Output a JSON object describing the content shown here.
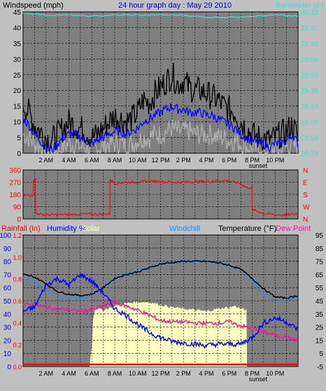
{
  "header": {
    "left": "Windspeed (mph)",
    "center": "24 hour graph day : May 29 2010",
    "right": "Barometer (in)"
  },
  "colors": {
    "background": "#c0c0c0",
    "plot": "#808080",
    "grid": "#000000",
    "wind_max": "#000000",
    "wind_avg": "#0000ff",
    "wind_low": "#b0b0b0",
    "barometer": "#40e0d0",
    "direction": "#ff0000",
    "temperature": "#000000",
    "humidity": "#0000ff",
    "windchill": "#1e90ff",
    "dew_point": "#ff1493",
    "solar": "#ffffc0",
    "rainfall": "#ff0000"
  },
  "chart_data": [
    {
      "type": "line",
      "ylabel": "Windspeed (mph)",
      "y2label": "Barometer (in)",
      "ylim": [
        0,
        45
      ],
      "y_ticks": [
        "0",
        "5",
        "10",
        "15",
        "20",
        "25",
        "30",
        "35",
        "40",
        "45"
      ],
      "y2lim": [
        28.79,
        30.12
      ],
      "y2_ticks": [
        "28.79",
        "28.94",
        "29.09",
        "29.23",
        "29.38",
        "29.53",
        "29.68",
        "29.83",
        "29.97",
        "30.12"
      ],
      "x_ticks": [
        "2 AM",
        "4 AM",
        "6 AM",
        "8 AM",
        "10 AM",
        "12 PM",
        "2 PM",
        "4 PM",
        "6 PM",
        "8 PM",
        "10 PM"
      ],
      "annotation": "sunset",
      "grid": true,
      "series": [
        {
          "key": "wind_max",
          "hours": [
            0,
            0.5,
            1,
            1.5,
            2,
            2.5,
            3,
            3.5,
            4,
            4.5,
            5,
            5.5,
            6,
            6.5,
            7,
            7.5,
            8,
            8.5,
            9,
            9.5,
            10,
            10.5,
            11,
            11.5,
            12,
            12.5,
            13,
            13.5,
            14,
            14.5,
            15,
            15.5,
            16,
            16.5,
            17,
            17.5,
            18,
            18.5,
            19,
            19.5,
            20,
            20.5,
            21,
            21.5,
            22,
            22.5,
            23,
            23.5,
            24
          ],
          "values": [
            16,
            13,
            9,
            7,
            5,
            4,
            6,
            8,
            10,
            9,
            8,
            7,
            5,
            6,
            8,
            10,
            12,
            11,
            10,
            11,
            13,
            17,
            16,
            19,
            21,
            23,
            25,
            22,
            23,
            21,
            20,
            20,
            19,
            18,
            17,
            15,
            14,
            13,
            10,
            8,
            6,
            5,
            5,
            4,
            5,
            6,
            7,
            9,
            5
          ]
        },
        {
          "key": "wind_avg",
          "hours": [
            0,
            0.5,
            1,
            1.5,
            2,
            2.5,
            3,
            3.5,
            4,
            4.5,
            5,
            5.5,
            6,
            6.5,
            7,
            7.5,
            8,
            8.5,
            9,
            9.5,
            10,
            10.5,
            11,
            11.5,
            12,
            12.5,
            13,
            13.5,
            14,
            14.5,
            15,
            15.5,
            16,
            16.5,
            17,
            17.5,
            18,
            18.5,
            19,
            19.5,
            20,
            20.5,
            21,
            21.5,
            22,
            22.5,
            23,
            23.5,
            24
          ],
          "values": [
            11,
            9,
            6,
            4,
            2,
            1,
            3,
            5,
            6,
            6,
            5,
            4,
            3,
            4,
            5,
            6,
            7,
            7,
            6,
            7,
            8,
            10,
            11,
            12,
            13,
            14,
            15,
            14,
            14,
            13,
            13,
            13,
            12,
            12,
            11,
            10,
            9,
            8,
            6,
            5,
            4,
            3,
            3,
            2,
            3,
            3,
            4,
            6,
            3
          ]
        },
        {
          "key": "wind_low",
          "hours": [
            0,
            0.5,
            1,
            1.5,
            2,
            2.5,
            3,
            3.5,
            4,
            4.5,
            5,
            5.5,
            6,
            6.5,
            7,
            7.5,
            8,
            8.5,
            9,
            9.5,
            10,
            10.5,
            11,
            11.5,
            12,
            12.5,
            13,
            13.5,
            14,
            14.5,
            15,
            15.5,
            16,
            16.5,
            17,
            17.5,
            18,
            18.5,
            19,
            19.5,
            20,
            20.5,
            21,
            21.5,
            22,
            22.5,
            23,
            23.5,
            24
          ],
          "values": [
            6,
            5,
            3,
            2,
            1,
            0,
            1,
            2,
            3,
            3,
            2,
            2,
            1,
            2,
            2,
            3,
            3,
            3,
            3,
            3,
            4,
            5,
            5,
            6,
            6,
            7,
            8,
            7,
            7,
            7,
            6,
            6,
            6,
            6,
            5,
            5,
            4,
            4,
            3,
            2,
            2,
            1,
            1,
            1,
            1,
            1,
            2,
            3,
            1
          ]
        },
        {
          "key": "barometer",
          "axis": "right",
          "hours": [
            0,
            2,
            4,
            6,
            8,
            10,
            12,
            14,
            16,
            18,
            20,
            22,
            24
          ],
          "values": [
            30.11,
            30.09,
            30.09,
            30.08,
            30.09,
            30.09,
            30.09,
            30.09,
            30.07,
            30.07,
            30.08,
            30.09,
            30.08
          ]
        }
      ]
    },
    {
      "type": "line",
      "ylabel": "Wind direction (degrees)",
      "ylim": [
        0,
        360
      ],
      "y_ticks": [
        "0",
        "90",
        "180",
        "270",
        "360"
      ],
      "y2_ticks": [
        "N",
        "W",
        "S",
        "E",
        "N"
      ],
      "grid": true,
      "series": [
        {
          "key": "direction",
          "hours": [
            0,
            0.5,
            0.9,
            1,
            1.1,
            2,
            3,
            4,
            5,
            6,
            7,
            7.5,
            7.6,
            8,
            9,
            10,
            11,
            12,
            13,
            14,
            15,
            16,
            17,
            18,
            19,
            19.5,
            20,
            21,
            22,
            23,
            24
          ],
          "values": [
            170,
            175,
            290,
            290,
            40,
            30,
            30,
            32,
            35,
            35,
            35,
            35,
            290,
            260,
            270,
            270,
            280,
            275,
            270,
            270,
            275,
            275,
            280,
            280,
            260,
            230,
            70,
            40,
            30,
            30,
            40
          ]
        }
      ]
    },
    {
      "type": "line",
      "legend": [
        "Rainfall (in)",
        "Humidity %",
        "Solar",
        "Windchill",
        "Temperature (°F)",
        "Dew Point"
      ],
      "rainfall_ticks": [
        "0.0",
        "0.2",
        "0.4",
        "0.6",
        "0.8",
        "1.0",
        "1.2"
      ],
      "humidity_ticks": [
        "0",
        "10",
        "20",
        "30",
        "40",
        "50",
        "60",
        "70",
        "80",
        "90",
        "100"
      ],
      "temperature_ticks": [
        "-5",
        "5",
        "15",
        "25",
        "35",
        "45",
        "55",
        "65",
        "75",
        "85",
        "95"
      ],
      "temperature_lim": [
        -5,
        95
      ],
      "grid": true,
      "series": [
        {
          "key": "temperature",
          "hours": [
            0,
            1,
            2,
            3,
            4,
            5,
            6,
            7,
            8,
            9,
            10,
            11,
            12,
            13,
            14,
            15,
            16,
            17,
            18,
            19,
            20,
            21,
            22,
            23,
            24
          ],
          "values": [
            65,
            63,
            58,
            52,
            50,
            49,
            50,
            55,
            62,
            65,
            67,
            70,
            73,
            74,
            75,
            75,
            75,
            74,
            72,
            69,
            62,
            54,
            48,
            47,
            49
          ]
        },
        {
          "key": "windchill",
          "hours": [
            0,
            1,
            2,
            3,
            4,
            5,
            6,
            7,
            8,
            9,
            10,
            11,
            12,
            13,
            14,
            15,
            16,
            17,
            18,
            19,
            20,
            21,
            22,
            23,
            24
          ],
          "values": [
            62,
            60,
            52,
            49,
            47,
            47,
            49,
            55,
            62,
            65,
            67,
            70,
            73,
            74,
            75,
            75,
            75,
            74,
            72,
            69,
            60,
            50,
            45,
            46,
            48
          ]
        },
        {
          "key": "dew_point",
          "hours": [
            0,
            1,
            2,
            3,
            4,
            5,
            6,
            7,
            8,
            9,
            10,
            11,
            12,
            13,
            14,
            15,
            16,
            17,
            18,
            19,
            20,
            21,
            22,
            23,
            24
          ],
          "values": [
            42,
            42,
            40,
            39,
            38,
            37,
            38,
            41,
            44,
            41,
            38,
            34,
            30,
            29,
            29,
            28,
            28,
            28,
            29,
            26,
            24,
            21,
            19,
            17,
            15
          ]
        },
        {
          "key": "humidity",
          "hours": [
            0,
            1,
            2,
            3,
            4,
            5,
            6,
            7,
            8,
            9,
            10,
            11,
            12,
            13,
            14,
            15,
            16,
            17,
            18,
            19,
            20,
            21,
            22,
            23,
            24
          ],
          "values": [
            42,
            45,
            62,
            67,
            62,
            70,
            65,
            56,
            44,
            39,
            32,
            26,
            22,
            19,
            18,
            17,
            16,
            17,
            17,
            17,
            22,
            33,
            37,
            34,
            28
          ]
        },
        {
          "key": "solar",
          "hours": [
            5.8,
            5.9,
            6,
            6.1,
            6.3,
            6.5,
            7,
            8,
            9,
            10,
            11,
            12,
            13,
            14,
            15,
            16,
            17,
            18,
            18.5,
            19,
            19.5,
            19.55
          ],
          "values": [
            0,
            8,
            15,
            36,
            45,
            44,
            43,
            46,
            48,
            49,
            49,
            47,
            45,
            44,
            43,
            42,
            44,
            45,
            46,
            44,
            43,
            0
          ]
        },
        {
          "key": "rainfall",
          "values": [
            0,
            0
          ]
        }
      ]
    }
  ]
}
